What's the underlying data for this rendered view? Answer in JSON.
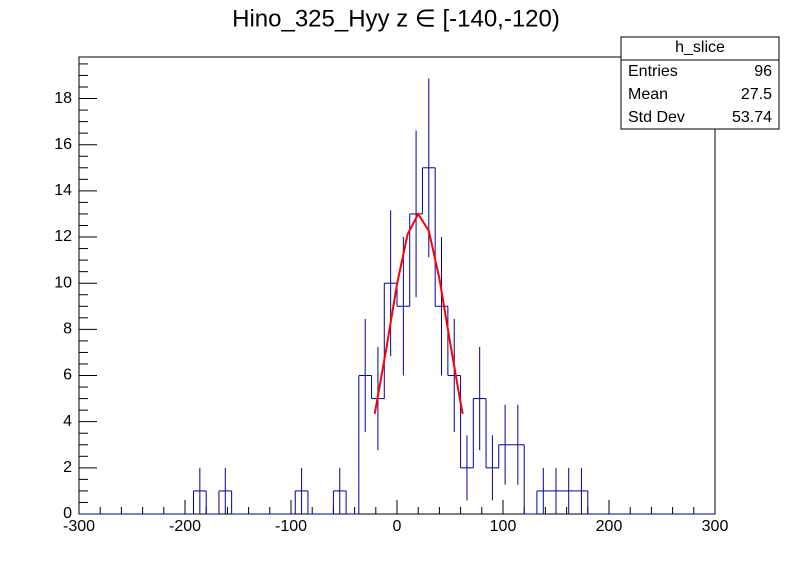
{
  "chart_data": {
    "type": "histogram",
    "title": "Hino_325_Hyy z  ∈ [-140,-120)",
    "bins": [
      -300,
      -288,
      -276,
      -264,
      -252,
      -240,
      -228,
      -216,
      -204,
      -192,
      -180,
      -168,
      -156,
      -144,
      -132,
      -120,
      -108,
      -96,
      -84,
      -72,
      -60,
      -48,
      -36,
      -24,
      -12,
      0,
      12,
      24,
      36,
      48,
      60,
      72,
      84,
      96,
      108,
      120,
      132,
      144,
      156,
      168,
      180,
      192,
      204,
      216,
      228,
      240,
      252,
      264,
      276,
      288,
      300
    ],
    "values": [
      0,
      0,
      0,
      0,
      0,
      0,
      0,
      0,
      0,
      1,
      0,
      1,
      0,
      0,
      0,
      0,
      0,
      1,
      0,
      0,
      1,
      0,
      6,
      5,
      10,
      9,
      13,
      15,
      9,
      6,
      2,
      5,
      2,
      3,
      3,
      0,
      1,
      1,
      1,
      1,
      0,
      0,
      0,
      0,
      0,
      0,
      0,
      0,
      0,
      0
    ],
    "errors": [
      0,
      0,
      0,
      0,
      0,
      0,
      0,
      0,
      0,
      1,
      0,
      1,
      0,
      0,
      0,
      0,
      0,
      1,
      0,
      0,
      1,
      0,
      2.45,
      2.24,
      3.16,
      3,
      3.61,
      3.87,
      3,
      2.45,
      1.41,
      2.24,
      1.41,
      1.73,
      1.73,
      0,
      1,
      1,
      1,
      1,
      0,
      0,
      0,
      0,
      0,
      0,
      0,
      0,
      0,
      0
    ],
    "color": "#000099",
    "fit": {
      "color": "#ff0000",
      "x": [
        -21,
        -10,
        0,
        10,
        20,
        30,
        40,
        50,
        60,
        62
      ],
      "values": [
        4.34,
        7.19,
        9.95,
        12.12,
        13,
        12.27,
        10.2,
        7.46,
        4.81,
        4.34
      ]
    },
    "xlim": [
      -300,
      300
    ],
    "xticks": [
      -300,
      -200,
      -100,
      0,
      100,
      200,
      300
    ],
    "ylim": [
      0,
      19.8
    ],
    "yticks": [
      0,
      2,
      4,
      6,
      8,
      10,
      12,
      14,
      16,
      18
    ],
    "stats": {
      "title": "h_slice",
      "rows": [
        {
          "label": "Entries",
          "value": 96
        },
        {
          "label": "Mean",
          "value": 27.5
        },
        {
          "label": "Std Dev",
          "value": 53.74
        }
      ]
    }
  }
}
